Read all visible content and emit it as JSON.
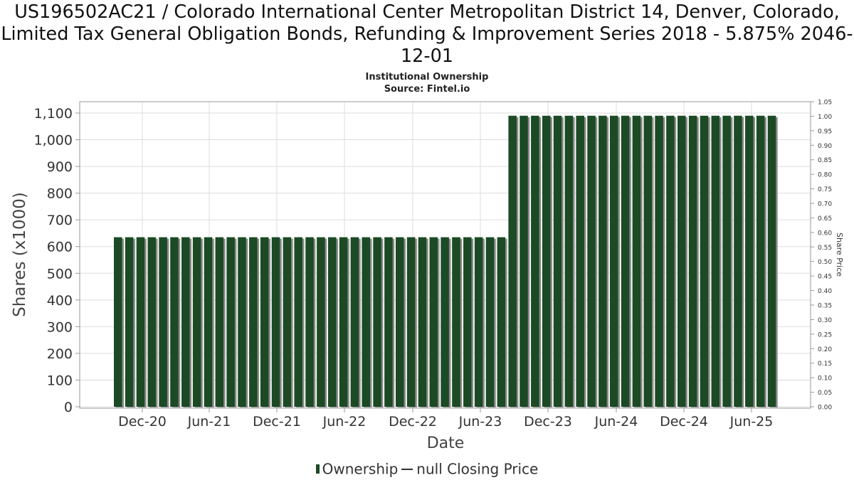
{
  "title": "US196502AC21 / Colorado International Center Metropolitan District 14, Denver, Colorado, Limited Tax General Obligation Bonds, Refunding & Improvement Series 2018 - 5.875% 2046-12-01",
  "subtitle1": "Institutional Ownership",
  "subtitle2": "Source: Fintel.io",
  "legend": {
    "ownership": "Ownership",
    "price": "null Closing Price"
  },
  "colors": {
    "bar": "#1b4a24",
    "bar_shadow": "#8a8a8a",
    "grid": "#dddddd"
  },
  "chart_data": {
    "type": "bar",
    "xlabel": "Date",
    "ylabel": "Shares (x1000)",
    "y2label": "Share Price",
    "ylim": [
      0,
      1100
    ],
    "y2lim": [
      0,
      1.05
    ],
    "yticks": [
      "0",
      "100",
      "200",
      "300",
      "400",
      "500",
      "600",
      "700",
      "800",
      "900",
      "1,000",
      "1,100"
    ],
    "y2ticks": [
      "0.00",
      "0.05",
      "0.10",
      "0.15",
      "0.20",
      "0.25",
      "0.30",
      "0.35",
      "0.40",
      "0.45",
      "0.50",
      "0.55",
      "0.60",
      "0.65",
      "0.70",
      "0.75",
      "0.80",
      "0.85",
      "0.90",
      "0.95",
      "1.00",
      "1.05"
    ],
    "xticks": [
      "Dec-20",
      "Jun-21",
      "Dec-21",
      "Jun-22",
      "Dec-22",
      "Jun-23",
      "Dec-23",
      "Jun-24",
      "Dec-24",
      "Jun-25"
    ],
    "grid": true,
    "legend_position": "bottom",
    "series": [
      {
        "name": "Ownership",
        "values": [
          635,
          635,
          635,
          635,
          635,
          635,
          635,
          635,
          635,
          635,
          635,
          635,
          635,
          635,
          635,
          635,
          635,
          635,
          635,
          635,
          635,
          635,
          635,
          635,
          635,
          635,
          635,
          635,
          635,
          635,
          635,
          635,
          635,
          635,
          635,
          1090,
          1090,
          1090,
          1090,
          1090,
          1090,
          1090,
          1090,
          1090,
          1090,
          1090,
          1090,
          1090,
          1090,
          1090,
          1090,
          1090,
          1090,
          1090,
          1090,
          1090,
          1090,
          1090,
          1090
        ]
      }
    ]
  }
}
